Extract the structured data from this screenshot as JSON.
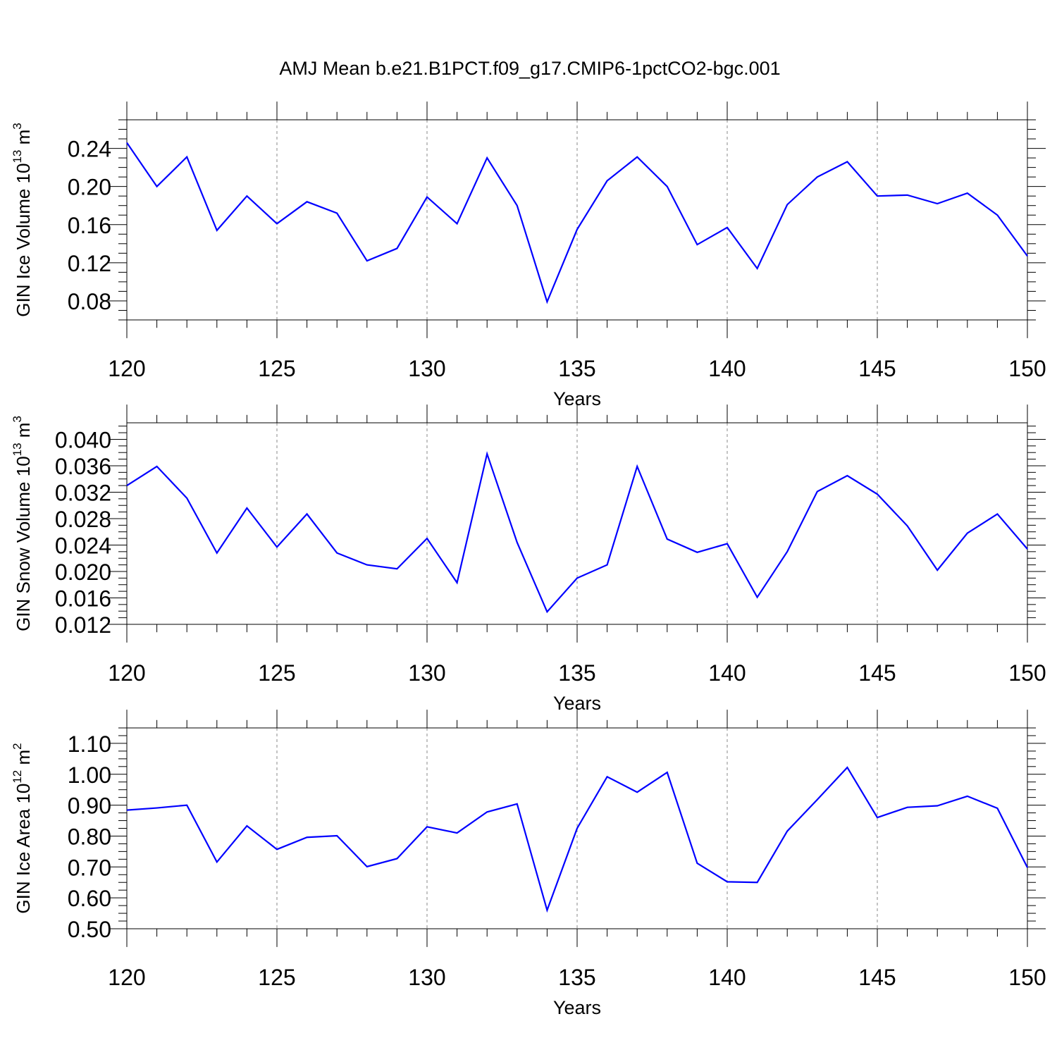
{
  "title": "AMJ Mean b.e21.B1PCT.f09_g17.CMIP6-1pctCO2-bgc.001",
  "colors": {
    "series": "#0000ff",
    "axis": "#000000",
    "grid": "#888888"
  },
  "chart_data": [
    {
      "type": "line",
      "title": "",
      "xlabel": "Years",
      "ylabel": "GIN Ice Volume 10",
      "ylabel_exp": "13",
      "ylabel_unit": " m",
      "ylabel_unit_exp": "3",
      "xlim": [
        120,
        150
      ],
      "ylim": [
        0.06,
        0.27
      ],
      "grid": "dashed vertical at x-ticks",
      "x_ticks": [
        "120",
        "125",
        "130",
        "135",
        "140",
        "145",
        "150"
      ],
      "y_ticks": [
        "0.08",
        "0.12",
        "0.16",
        "0.20",
        "0.24"
      ],
      "y_tick_values": [
        0.08,
        0.12,
        0.16,
        0.2,
        0.24
      ],
      "x": [
        120,
        121,
        122,
        123,
        124,
        125,
        126,
        127,
        128,
        129,
        130,
        131,
        132,
        133,
        134,
        135,
        136,
        137,
        138,
        139,
        140,
        141,
        142,
        143,
        144,
        145,
        146,
        147,
        148,
        149,
        150
      ],
      "values": [
        0.246,
        0.2,
        0.231,
        0.154,
        0.19,
        0.161,
        0.184,
        0.172,
        0.122,
        0.135,
        0.189,
        0.161,
        0.23,
        0.18,
        0.079,
        0.155,
        0.206,
        0.231,
        0.2,
        0.139,
        0.157,
        0.114,
        0.181,
        0.21,
        0.226,
        0.19,
        0.191,
        0.182,
        0.193,
        0.17,
        0.127
      ]
    },
    {
      "type": "line",
      "title": "",
      "xlabel": "Years",
      "ylabel": "GIN Snow Volume 10",
      "ylabel_exp": "13",
      "ylabel_unit": " m",
      "ylabel_unit_exp": "3",
      "xlim": [
        120,
        150
      ],
      "ylim": [
        0.012,
        0.0425
      ],
      "grid": "dashed vertical at x-ticks",
      "x_ticks": [
        "120",
        "125",
        "130",
        "135",
        "140",
        "145",
        "150"
      ],
      "y_ticks": [
        "0.012",
        "0.016",
        "0.020",
        "0.024",
        "0.028",
        "0.032",
        "0.036",
        "0.040"
      ],
      "y_tick_values": [
        0.012,
        0.016,
        0.02,
        0.024,
        0.028,
        0.032,
        0.036,
        0.04
      ],
      "x": [
        120,
        121,
        122,
        123,
        124,
        125,
        126,
        127,
        128,
        129,
        130,
        131,
        132,
        133,
        134,
        135,
        136,
        137,
        138,
        139,
        140,
        141,
        142,
        143,
        144,
        145,
        146,
        147,
        148,
        149,
        150
      ],
      "values": [
        0.033,
        0.0359,
        0.0311,
        0.0228,
        0.0296,
        0.0237,
        0.0287,
        0.0228,
        0.021,
        0.0204,
        0.025,
        0.0183,
        0.0378,
        0.0244,
        0.0139,
        0.019,
        0.021,
        0.0359,
        0.0249,
        0.0229,
        0.0242,
        0.0161,
        0.023,
        0.0321,
        0.0345,
        0.0317,
        0.0269,
        0.0202,
        0.0258,
        0.0287,
        0.0234
      ]
    },
    {
      "type": "line",
      "title": "",
      "xlabel": "Years",
      "ylabel": "GIN Ice Area 10",
      "ylabel_exp": "12",
      "ylabel_unit": " m",
      "ylabel_unit_exp": "2",
      "xlim": [
        120,
        150
      ],
      "ylim": [
        0.5,
        1.15
      ],
      "grid": "dashed vertical at x-ticks",
      "x_ticks": [
        "120",
        "125",
        "130",
        "135",
        "140",
        "145",
        "150"
      ],
      "y_ticks": [
        "0.50",
        "0.60",
        "0.70",
        "0.80",
        "0.90",
        "1.00",
        "1.10"
      ],
      "y_tick_values": [
        0.5,
        0.6,
        0.7,
        0.8,
        0.9,
        1.0,
        1.1
      ],
      "x": [
        120,
        121,
        122,
        123,
        124,
        125,
        126,
        127,
        128,
        129,
        130,
        131,
        132,
        133,
        134,
        135,
        136,
        137,
        138,
        139,
        140,
        141,
        142,
        143,
        144,
        145,
        146,
        147,
        148,
        149,
        150
      ],
      "values": [
        0.884,
        0.891,
        0.9,
        0.716,
        0.833,
        0.757,
        0.796,
        0.801,
        0.701,
        0.727,
        0.83,
        0.81,
        0.878,
        0.904,
        0.56,
        0.825,
        0.992,
        0.942,
        1.006,
        0.712,
        0.652,
        0.65,
        0.816,
        0.918,
        1.022,
        0.86,
        0.893,
        0.898,
        0.929,
        0.89,
        0.698
      ]
    }
  ]
}
